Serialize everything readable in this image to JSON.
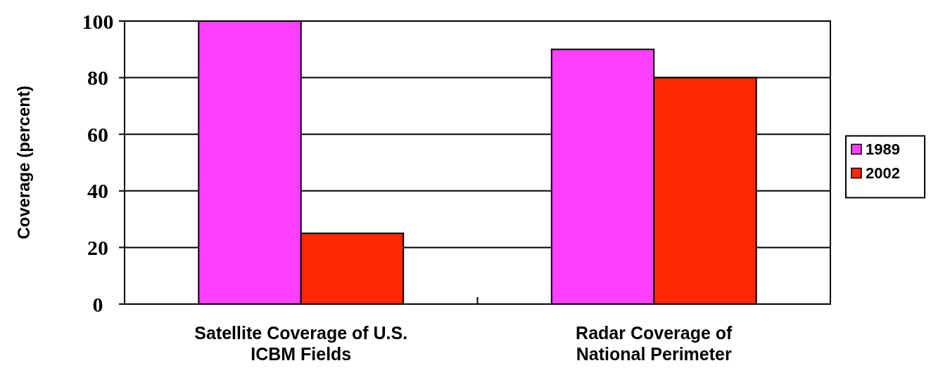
{
  "chart_data": {
    "type": "bar",
    "ylabel": "Coverage (percent)",
    "categories": [
      "Satellite Coverage of U.S.\nICBM Fields",
      "Radar Coverage of\nNational Perimeter"
    ],
    "series": [
      {
        "name": "1989",
        "color": "#ff40ff",
        "values": [
          100,
          90
        ]
      },
      {
        "name": "2002",
        "color": "#ff2800",
        "values": [
          25,
          80
        ]
      }
    ],
    "ylim": [
      0,
      100
    ],
    "yticks": [
      0,
      20,
      40,
      60,
      80,
      100
    ],
    "grid": "y",
    "legend": "right"
  }
}
